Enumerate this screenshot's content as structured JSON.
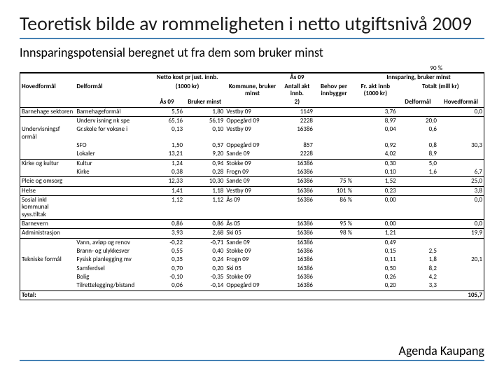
{
  "title": "Teoretisk bilde av rommeligheten i netto utgiftsnivå 2009",
  "subtitle": "Innsparingspotensial beregnet ut fra dem som bruker minst",
  "pct90": "90 %",
  "colors": {
    "accent": "#4682b4",
    "text": "#000000",
    "background": "#ffffff"
  },
  "headers": {
    "netto": "Netto kost pr just. innb.",
    "netto_unit": "(1000 kr)",
    "kommune": "Kommune, bruker minst",
    "as09_col": "Ås 09",
    "antall": "Antall akt innb.",
    "antall_note": "2)",
    "behov": "Behov per innbygger",
    "innsparing": "Innsparing, bruker minst",
    "fr_akt": "Fr. akt innb (1000 kr)",
    "totalt": "Totalt (mill kr)",
    "hovedformal": "Hovedformål",
    "delformal": "Delformål",
    "as09": "Ås 09",
    "bruker_minst": "Bruker minst",
    "delformal_col": "Delformål",
    "hovedformal_col": "Hovedformål"
  },
  "rows": [
    {
      "hoved": "Barnehage sektoren",
      "del": "Barnehageformål",
      "as": "5,56",
      "bm": "1,80",
      "kom": "Vestby 09",
      "ant": "1149",
      "beh": "",
      "fr": "3,76",
      "d": "",
      "h": "0,0"
    },
    {
      "hoved": "",
      "del": "Underv isning nk spe",
      "as": "65,16",
      "bm": "56,19",
      "kom": "Oppegård 09",
      "ant": "2228",
      "beh": "",
      "fr": "8,97",
      "d": "20,0",
      "h": ""
    },
    {
      "hoved": "Undervisningsf ormål",
      "del": "Gr.skole for voksne i",
      "as": "0,13",
      "bm": "0,10",
      "kom": "Vestby 09",
      "ant": "16386",
      "beh": "",
      "fr": "0,04",
      "d": "0,6",
      "h": ""
    },
    {
      "hoved": "",
      "del": "SFO",
      "as": "1,50",
      "bm": "0,57",
      "kom": "Oppegård 09",
      "ant": "857",
      "beh": "",
      "fr": "0,92",
      "d": "0,8",
      "h": "30,3"
    },
    {
      "hoved": "",
      "del": "Lokaler",
      "as": "13,21",
      "bm": "9,20",
      "kom": "Sande 09",
      "ant": "2228",
      "beh": "",
      "fr": "4,02",
      "d": "8,9",
      "h": ""
    },
    {
      "hoved": "Kirke og kultur",
      "del": "Kultur",
      "as": "1,24",
      "bm": "0,94",
      "kom": "Stokke 09",
      "ant": "16386",
      "beh": "",
      "fr": "0,30",
      "d": "5,0",
      "h": ""
    },
    {
      "hoved": "",
      "del": "Kirke",
      "as": "0,38",
      "bm": "0,28",
      "kom": "Frogn 09",
      "ant": "16386",
      "beh": "",
      "fr": "0,10",
      "d": "1,6",
      "h": "6,7"
    },
    {
      "hoved": "Pleie og omsorg",
      "del": "",
      "as": "12,33",
      "bm": "10,30",
      "kom": "Sande 09",
      "ant": "16386",
      "beh": "75 %",
      "fr": "1,52",
      "d": "",
      "h": "25,0"
    },
    {
      "hoved": "Helse",
      "del": "",
      "as": "1,41",
      "bm": "1,18",
      "kom": "Vestby 09",
      "ant": "16386",
      "beh": "101 %",
      "fr": "0,23",
      "d": "",
      "h": "3,8"
    },
    {
      "hoved": "Sosial inkl kommunal syss.tiltak",
      "del": "",
      "as": "1,12",
      "bm": "1,12",
      "kom": "Ås 09",
      "ant": "16386",
      "beh": "86 %",
      "fr": "0,00",
      "d": "",
      "h": "0,0"
    },
    {
      "hoved": "Barnevern",
      "del": "",
      "as": "0,86",
      "bm": "0,86",
      "kom": "Ås 05",
      "ant": "16386",
      "beh": "95 %",
      "fr": "0,00",
      "d": "",
      "h": "0,0"
    },
    {
      "hoved": "Administrasjon",
      "del": "",
      "as": "3,93",
      "bm": "2,68",
      "kom": "Ski 05",
      "ant": "16386",
      "beh": "98 %",
      "fr": "1,21",
      "d": "",
      "h": "19,9"
    },
    {
      "hoved": "",
      "del": "Vann, avløp og renov",
      "as": "-0,22",
      "bm": "-0,71",
      "kom": "Sande 09",
      "ant": "16386",
      "beh": "",
      "fr": "0,49",
      "d": "",
      "h": ""
    },
    {
      "hoved": "",
      "del": "Brann- og ulykkesver",
      "as": "0,55",
      "bm": "0,40",
      "kom": "Stokke 09",
      "ant": "16386",
      "beh": "",
      "fr": "0,15",
      "d": "2,5",
      "h": ""
    },
    {
      "hoved": "Tekniske formål",
      "del": "Fysisk planlegging mv",
      "as": "0,35",
      "bm": "0,24",
      "kom": "Frogn 09",
      "ant": "16386",
      "beh": "",
      "fr": "0,11",
      "d": "1,8",
      "h": "20,1"
    },
    {
      "hoved": "",
      "del": "Samferdsel",
      "as": "0,70",
      "bm": "0,20",
      "kom": "Ski 05",
      "ant": "16386",
      "beh": "",
      "fr": "0,50",
      "d": "8,2",
      "h": ""
    },
    {
      "hoved": "",
      "del": "Bolig",
      "as": "-0,10",
      "bm": "-0,35",
      "kom": "Stokke 09",
      "ant": "16386",
      "beh": "",
      "fr": "0,26",
      "d": "4,2",
      "h": ""
    },
    {
      "hoved": "",
      "del": "Tilrettelegging/bistand",
      "as": "0,06",
      "bm": "-0,14",
      "kom": "Oppegård 09",
      "ant": "16386",
      "beh": "",
      "fr": "0,20",
      "d": "3,3",
      "h": ""
    }
  ],
  "total": {
    "label": "Total:",
    "value": "105,7"
  },
  "footer": "Agenda Kaupang"
}
